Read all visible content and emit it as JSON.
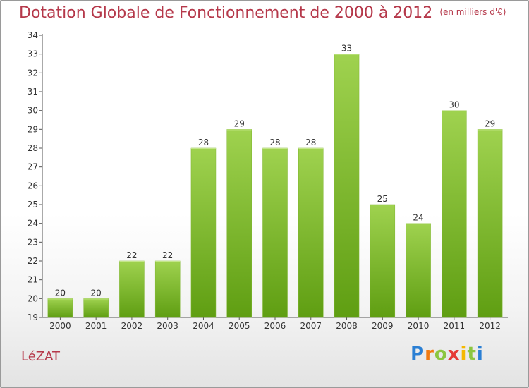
{
  "header": {
    "title": "Dotation Globale de Fonctionnement de 2000 à 2012",
    "unit": "(en milliers d'€)"
  },
  "footer": {
    "commune": "LéZAT",
    "logo_letters": [
      "P",
      "r",
      "o",
      "x",
      "i",
      "t",
      "i"
    ],
    "logo_colors": [
      "#2a7fd4",
      "#f07a12",
      "#8cc63f",
      "#e53935",
      "#f5b800",
      "#8cc63f",
      "#2a7fd4"
    ]
  },
  "colors": {
    "bar_top": "#9fd24f",
    "bar_bottom": "#5f9e12",
    "axis": "#555555",
    "title": "#b5384a"
  },
  "chart_data": {
    "type": "bar",
    "categories": [
      "2000",
      "2001",
      "2002",
      "2003",
      "2004",
      "2005",
      "2006",
      "2007",
      "2008",
      "2009",
      "2010",
      "2011",
      "2012"
    ],
    "values": [
      20,
      20,
      22,
      22,
      28,
      29,
      28,
      28,
      33,
      25,
      24,
      30,
      29
    ],
    "ylim": [
      19,
      34
    ],
    "yticks": [
      19,
      20,
      21,
      22,
      23,
      24,
      25,
      26,
      27,
      28,
      29,
      30,
      31,
      32,
      33,
      34
    ],
    "grid": false,
    "legend": "none"
  }
}
